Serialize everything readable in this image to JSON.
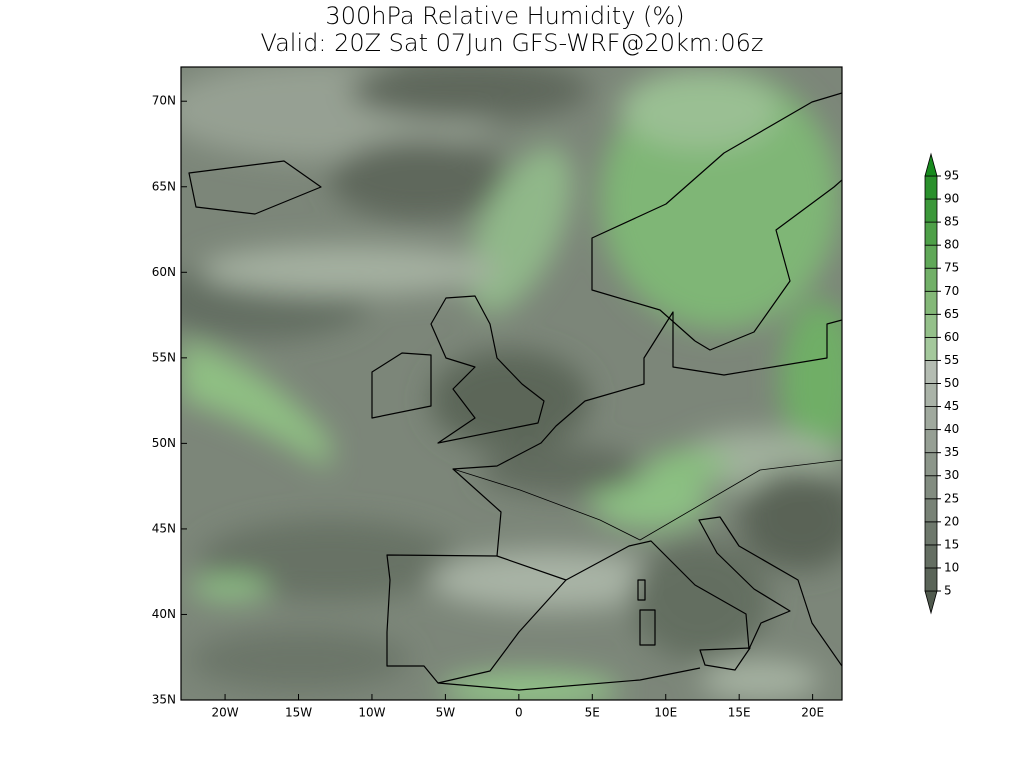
{
  "title": [
    "300hPa Relative Humidity (%)",
    "Valid: 20Z Sat 07Jun GFS-WRF@20km:06z"
  ],
  "map": {
    "xlim": [
      -23,
      22
    ],
    "ylim": [
      35,
      72
    ],
    "xticks": [
      {
        "value": -20,
        "label": "20W"
      },
      {
        "value": -15,
        "label": "15W"
      },
      {
        "value": -10,
        "label": "10W"
      },
      {
        "value": -5,
        "label": "5W"
      },
      0,
      {
        "value": 5,
        "label": "5E"
      },
      {
        "value": 10,
        "label": "10E"
      },
      {
        "value": 15,
        "label": "15E"
      },
      {
        "value": 20,
        "label": "20E"
      }
    ],
    "yticks": [
      {
        "value": 35,
        "label": "35N"
      },
      {
        "value": 40,
        "label": "40N"
      },
      {
        "value": 45,
        "label": "45N"
      },
      {
        "value": 50,
        "label": "50N"
      },
      {
        "value": 55,
        "label": "55N"
      },
      {
        "value": 60,
        "label": "60N"
      },
      {
        "value": 65,
        "label": "65N"
      },
      {
        "value": 70,
        "label": "70N"
      }
    ]
  },
  "colorbar": {
    "levels": [
      5,
      10,
      15,
      20,
      25,
      30,
      35,
      40,
      45,
      50,
      55,
      60,
      65,
      70,
      75,
      80,
      85,
      90,
      95
    ],
    "colors": [
      "#505a4e",
      "#5a6458",
      "#646e62",
      "#6e786c",
      "#788276",
      "#828c80",
      "#8c968a",
      "#969f94",
      "#a0a99e",
      "#aab3a8",
      "#b4bcb2",
      "#a4c89c",
      "#94c08a",
      "#84b878",
      "#72b068",
      "#60a858",
      "#4ea048",
      "#3c983a",
      "#2a902c",
      "#188a1e"
    ]
  }
}
